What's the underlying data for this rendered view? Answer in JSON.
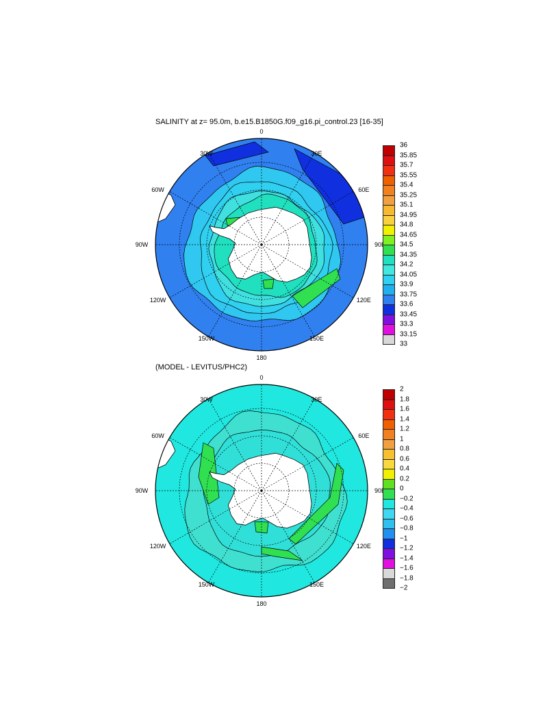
{
  "panels": [
    {
      "title": "SALINITY at z=  95.0m, b.e15.B1850G.f09_g16.pi_control.23 [16-35]",
      "lon_labels": [
        "0",
        "30E",
        "60E",
        "90E",
        "120E",
        "150E",
        "180",
        "150W",
        "120W",
        "90W",
        "60W",
        "30W"
      ],
      "colorbar": {
        "levels": [
          "36",
          "35.85",
          "35.7",
          "35.55",
          "35.4",
          "35.25",
          "35.1",
          "34.95",
          "34.8",
          "34.65",
          "34.5",
          "34.35",
          "34.2",
          "34.05",
          "33.9",
          "33.75",
          "33.6",
          "33.45",
          "33.3",
          "33.15",
          "33"
        ],
        "colors": [
          "#c00000",
          "#e01010",
          "#f03010",
          "#f06000",
          "#f08020",
          "#f0a040",
          "#f8b830",
          "#f8d040",
          "#f0f000",
          "#80f020",
          "#30e050",
          "#20e0c0",
          "#40e8e0",
          "#30d0f0",
          "#20b0f0",
          "#3080f0",
          "#1030e0",
          "#8010e0",
          "#e010e0",
          "#d8d8d8",
          "#707070"
        ]
      }
    },
    {
      "title": "(MODEL - LEVITUS/PHC2)",
      "lon_labels": [
        "0",
        "30E",
        "60E",
        "90E",
        "120E",
        "150E",
        "180",
        "150W",
        "120W",
        "90W",
        "60W",
        "30W"
      ],
      "colorbar": {
        "levels": [
          "2",
          "1.8",
          "1.6",
          "1.4",
          "1.2",
          "1",
          "0.8",
          "0.6",
          "0.4",
          "0.2",
          "0",
          "−0.2",
          "−0.4",
          "−0.6",
          "−0.8",
          "−1",
          "−1.2",
          "−1.4",
          "−1.6",
          "−1.8",
          "−2"
        ],
        "colors": [
          "#c00000",
          "#e01010",
          "#f03010",
          "#f06000",
          "#f08020",
          "#f0a040",
          "#f8c030",
          "#f8d840",
          "#f0f000",
          "#60e020",
          "#30e050",
          "#20e8e0",
          "#40d8f0",
          "#30c0f0",
          "#2090f0",
          "#1030e0",
          "#8010e0",
          "#e010e0",
          "#d8d8d8",
          "#707070"
        ]
      }
    }
  ]
}
